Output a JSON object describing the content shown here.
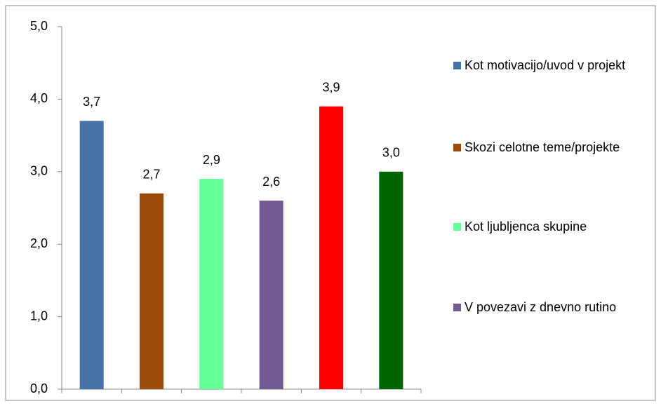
{
  "chart_data": {
    "type": "bar",
    "categories": [
      null,
      null,
      null,
      null,
      null,
      null
    ],
    "values": [
      3.7,
      2.7,
      2.9,
      2.6,
      3.9,
      3.0
    ],
    "value_labels": [
      "3,7",
      "2,7",
      "2,9",
      "2,6",
      "3,9",
      "3,0"
    ],
    "colors": [
      "#4672a8",
      "#9c4a0a",
      "#66ff99",
      "#725a92",
      "#ff0000",
      "#006400"
    ],
    "legend": [
      "Kot motivacijo/uvod v projekt",
      "Skozi celotne teme/projekte",
      "Kot ljubljenca skupine",
      "V povezavi z dnevno rutino"
    ],
    "ylim": [
      0,
      5
    ],
    "yticks": [
      {
        "value": 0,
        "label": "0,0"
      },
      {
        "value": 1,
        "label": "1,0"
      },
      {
        "value": 2,
        "label": "2,0"
      },
      {
        "value": 3,
        "label": "3,0"
      },
      {
        "value": 4,
        "label": "4,0"
      },
      {
        "value": 5,
        "label": "5,0"
      }
    ],
    "grid": false
  }
}
